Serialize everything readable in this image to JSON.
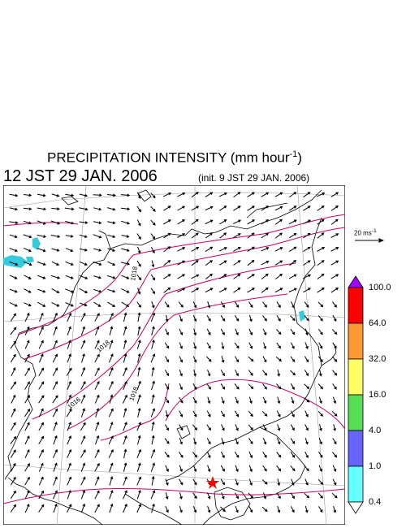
{
  "title": {
    "main": "PRECIPITATION INTENSITY (mm hour",
    "exp": "-1",
    "close": ")"
  },
  "time_label": "12 JST 29 JAN. 2006",
  "init_label": "(init. 9 JST 29 JAN. 2006)",
  "wind_reference": {
    "label": "20 ms",
    "exp": "-1"
  },
  "isobar_labels": [
    "1016",
    "1018",
    "1018",
    "1018"
  ],
  "colorbar": {
    "levels": [
      "100.0",
      "64.0",
      "32.0",
      "16.0",
      "4.0",
      "1.0",
      "0.4"
    ],
    "colors": [
      "#a000ff",
      "#ff0000",
      "#ff9933",
      "#ffff66",
      "#55dd55",
      "#6666ff",
      "#66ffff",
      "#ffffff"
    ]
  },
  "colors": {
    "isobar": "#cc0066",
    "coast": "#000000",
    "grid": "#999999",
    "marker": "#ff0000",
    "cyan": "#33ccdd"
  }
}
